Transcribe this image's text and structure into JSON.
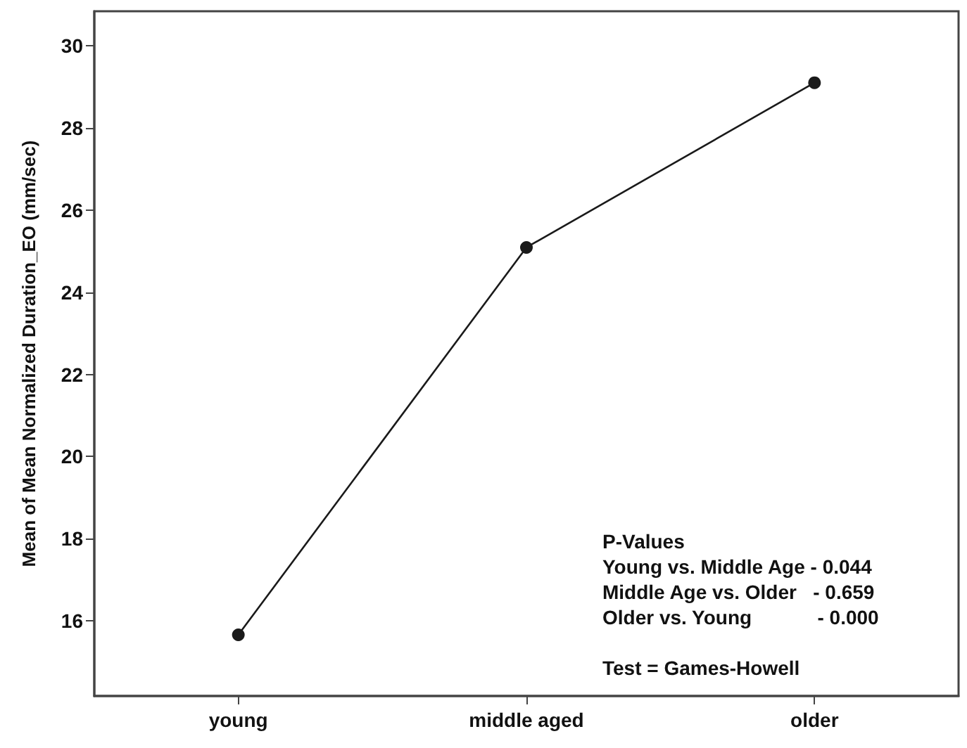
{
  "chart_data": {
    "type": "line",
    "ylabel": "Mean of Mean Normalized Duration_EO (mm/sec)",
    "categories": [
      "young",
      "middle aged",
      "older"
    ],
    "series": [
      {
        "color": "#1a1a1a",
        "values": [
          15.66,
          25.09,
          29.1
        ]
      }
    ],
    "ylim": [
      14.17,
      30.84
    ],
    "yticks": [
      16,
      18,
      20,
      22,
      24,
      26,
      28,
      30
    ],
    "grid": false,
    "marker": "circle",
    "line_style": "solid",
    "annotations": [
      "P-Values",
      "Young vs. Middle Age - 0.044",
      "Middle Age vs. Older   - 0.659",
      "Older vs. Young            - 0.000",
      "Test = Games-Howell"
    ]
  }
}
